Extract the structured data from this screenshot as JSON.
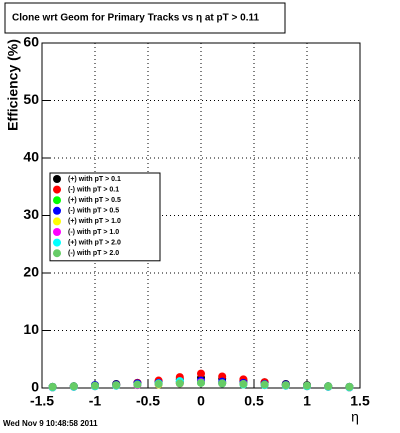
{
  "chart_data": {
    "type": "scatter",
    "title": "Clone wrt Geom for Primary Tracks vs   η at pT > 0.11",
    "x_label": "η",
    "y_label": "Efficiency (%)",
    "date_stamp": "Wed Nov  9 10:48:58 2011",
    "x": [
      -1.4,
      -1.2,
      -1.0,
      -0.8,
      -0.6,
      -0.4,
      -0.2,
      0,
      0.2,
      0.4,
      0.6,
      0.8,
      1.0,
      1.2,
      1.4
    ],
    "xlim": [
      -1.5,
      1.5
    ],
    "xticks": [
      -1.5,
      -1,
      -0.5,
      0,
      0.5,
      1,
      1.5
    ],
    "ylim": [
      0,
      60
    ],
    "yticks": [
      0,
      10,
      20,
      30,
      40,
      50,
      60
    ],
    "grid": true,
    "legend": "left",
    "series": [
      {
        "name": "(+) with pT > 0.1",
        "color": "#000000",
        "values": [
          0.2,
          0.3,
          0.5,
          0.7,
          0.9,
          1.1,
          1.5,
          1.8,
          1.6,
          1.3,
          1.0,
          0.7,
          0.5,
          0.3,
          0.2
        ]
      },
      {
        "name": "(-) with pT > 0.1",
        "color": "#ff0000",
        "values": [
          0.1,
          0.2,
          0.4,
          0.6,
          0.9,
          1.3,
          1.9,
          2.5,
          2.0,
          1.5,
          1.0,
          0.6,
          0.4,
          0.2,
          0.1
        ]
      },
      {
        "name": "(+) with pT > 0.5",
        "color": "#00ff00",
        "values": [
          0.2,
          0.3,
          0.4,
          0.5,
          0.6,
          0.7,
          0.9,
          1.1,
          0.9,
          0.8,
          0.6,
          0.5,
          0.4,
          0.3,
          0.2
        ]
      },
      {
        "name": "(-) with pT > 0.5",
        "color": "#0000ff",
        "values": [
          0.2,
          0.3,
          0.5,
          0.6,
          0.8,
          0.9,
          1.1,
          1.3,
          1.1,
          0.9,
          0.7,
          0.6,
          0.4,
          0.3,
          0.2
        ]
      },
      {
        "name": "(+) with pT > 1.0",
        "color": "#ffff00",
        "values": [
          0.1,
          0.2,
          0.3,
          0.4,
          0.5,
          0.6,
          0.8,
          0.9,
          0.8,
          0.6,
          0.5,
          0.4,
          0.3,
          0.2,
          0.1
        ]
      },
      {
        "name": "(-) with pT > 1.0",
        "color": "#ff00ff",
        "values": [
          0.1,
          0.2,
          0.3,
          0.4,
          0.5,
          0.7,
          0.8,
          1.0,
          0.8,
          0.7,
          0.5,
          0.4,
          0.3,
          0.2,
          0.1
        ]
      },
      {
        "name": "(+) with pT > 2.0",
        "color": "#00ffff",
        "values": [
          0.1,
          0.2,
          0.3,
          0.4,
          0.6,
          0.8,
          1.2,
          0.9,
          0.8,
          0.6,
          0.5,
          0.4,
          0.3,
          0.2,
          0.1
        ]
      },
      {
        "name": "(-) with pT > 2.0",
        "color": "#66cc66",
        "values": [
          0.2,
          0.3,
          0.4,
          0.5,
          0.6,
          0.7,
          0.8,
          0.9,
          0.8,
          0.7,
          0.6,
          0.5,
          0.4,
          0.3,
          0.2
        ]
      }
    ]
  }
}
